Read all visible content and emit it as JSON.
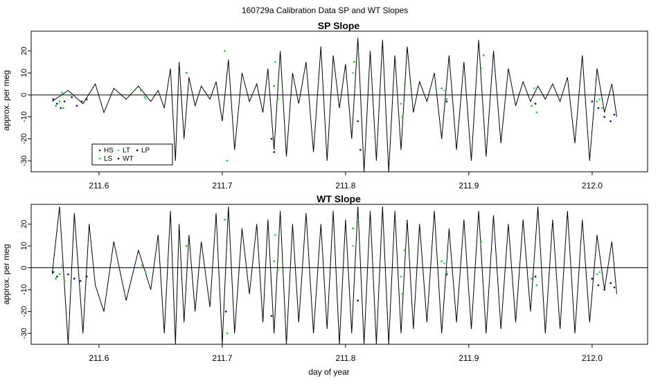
{
  "figure": {
    "title": "160729a   Calibration Data SP and WT Slopes",
    "xlabel": "day of year"
  },
  "colors": {
    "HS": "#1a1a8c",
    "LS": "#22cc22",
    "LT": "#33cccc",
    "WT": "#000000",
    "LP": "#000000",
    "axis": "#000000",
    "zero_line": "#000000"
  },
  "legend": {
    "placement": "bottom-left of top panel",
    "entries": [
      "HS",
      "LT",
      "LP",
      "LS",
      "WT"
    ]
  },
  "chart_data": [
    {
      "type": "line",
      "title": "SP Slope",
      "xlabel": "",
      "ylabel": "approx. per meg",
      "xlim": [
        211.545,
        212.045
      ],
      "ylim": [
        -35,
        29
      ],
      "xticks": [
        211.6,
        211.7,
        211.8,
        211.9,
        212.0
      ],
      "xtick_labels": [
        "211.6",
        "211.7",
        "211.8",
        "211.9",
        "212.0"
      ],
      "yticks": [
        -30,
        -20,
        -10,
        0,
        10,
        20
      ],
      "ytick_labels": [
        "-30",
        "-20",
        "-10",
        "0",
        "10",
        "20"
      ],
      "hline": 0,
      "series": [
        {
          "name": "WT",
          "style": "line",
          "x": [
            211.562,
            211.575,
            211.587,
            211.597,
            211.604,
            211.612,
            211.622,
            211.632,
            211.642,
            211.648,
            211.653,
            211.658,
            211.662,
            211.665,
            211.669,
            211.673,
            211.678,
            211.683,
            211.69,
            211.695,
            211.7,
            211.705,
            211.71,
            211.716,
            211.722,
            211.728,
            211.733,
            211.737,
            211.742,
            211.747,
            211.752,
            211.757,
            211.762,
            211.768,
            211.774,
            211.78,
            211.785,
            211.79,
            211.795,
            211.8,
            211.805,
            211.81,
            211.815,
            211.82,
            211.825,
            211.83,
            211.835,
            211.84,
            211.845,
            211.85,
            211.855,
            211.86,
            211.866,
            211.872,
            211.878,
            211.884,
            211.89,
            211.896,
            211.902,
            211.908,
            211.914,
            211.92,
            211.926,
            211.932,
            211.938,
            211.944,
            211.95,
            211.956,
            211.962,
            211.968,
            211.974,
            211.98,
            211.986,
            211.992,
            211.998,
            212.004,
            212.01,
            212.016,
            212.02
          ],
          "y": [
            -3,
            2,
            -4,
            5,
            -8,
            3,
            -2,
            4,
            -3,
            2,
            -6,
            12,
            -30,
            15,
            -20,
            8,
            -5,
            4,
            -2,
            6,
            -12,
            16,
            -25,
            10,
            -3,
            5,
            -8,
            12,
            -25,
            20,
            -28,
            10,
            -4,
            15,
            -26,
            22,
            -30,
            18,
            -6,
            14,
            -20,
            26,
            -35,
            20,
            -30,
            25,
            -35,
            18,
            -25,
            22,
            -8,
            6,
            -3,
            10,
            -20,
            18,
            -25,
            15,
            -30,
            25,
            -28,
            20,
            -22,
            12,
            -5,
            6,
            -3,
            4,
            -2,
            5,
            -3,
            8,
            -22,
            18,
            -30,
            12,
            -8,
            5,
            -10
          ]
        },
        {
          "name": "HS",
          "style": "points",
          "x": [
            211.563,
            211.566,
            211.569,
            211.572,
            211.578,
            211.582,
            211.586,
            211.59,
            211.74,
            211.742,
            211.81,
            211.812,
            211.882,
            211.954,
            212.0,
            212.005,
            212.01,
            212.015,
            212.018
          ],
          "y": [
            -2,
            -4,
            -6,
            -3,
            -1,
            -5,
            -3,
            -2,
            -20,
            -26,
            -12,
            -25,
            -3,
            -4,
            -3,
            -6,
            -10,
            -12,
            -9
          ]
        },
        {
          "name": "LS",
          "style": "points",
          "x": [
            211.565,
            211.568,
            211.571,
            211.575,
            211.634,
            211.637,
            211.671,
            211.702,
            211.704,
            211.742,
            211.745,
            211.807,
            211.81,
            211.846,
            211.848,
            211.878,
            211.882,
            211.91,
            211.912,
            211.951,
            211.955,
            212.004,
            212.008
          ],
          "y": [
            -5,
            -3,
            -6,
            0,
            2,
            -1,
            10,
            20,
            -30,
            4,
            -2,
            15,
            20,
            -10,
            5,
            3,
            -2,
            12,
            18,
            -5,
            -8,
            -3,
            -6
          ]
        },
        {
          "name": "LT",
          "style": "points",
          "x": [
            211.57,
            211.638,
            211.743,
            211.806,
            211.845,
            211.88,
            211.953,
            212.006
          ],
          "y": [
            1,
            -2,
            15,
            10,
            -4,
            2,
            3,
            -2
          ]
        },
        {
          "name": "LP",
          "style": "points",
          "x": [],
          "y": []
        }
      ]
    },
    {
      "type": "line",
      "title": "WT Slope",
      "xlabel": "day of year",
      "ylabel": "approx. per meg",
      "xlim": [
        211.545,
        212.045
      ],
      "ylim": [
        -35,
        29
      ],
      "xticks": [
        211.6,
        211.7,
        211.8,
        211.9,
        212.0
      ],
      "xtick_labels": [
        "211.6",
        "211.7",
        "211.8",
        "211.9",
        "212.0"
      ],
      "yticks": [
        -30,
        -20,
        -10,
        0,
        10,
        20
      ],
      "ytick_labels": [
        "-30",
        "-20",
        "-10",
        "0",
        "10",
        "20"
      ],
      "hline": 0,
      "series": [
        {
          "name": "WT",
          "style": "line",
          "x": [
            211.562,
            211.568,
            211.575,
            211.58,
            211.587,
            211.592,
            211.597,
            211.604,
            211.612,
            211.622,
            211.632,
            211.642,
            211.648,
            211.653,
            211.658,
            211.662,
            211.665,
            211.669,
            211.673,
            211.678,
            211.683,
            211.69,
            211.695,
            211.7,
            211.705,
            211.71,
            211.716,
            211.722,
            211.728,
            211.733,
            211.737,
            211.742,
            211.747,
            211.752,
            211.757,
            211.762,
            211.768,
            211.774,
            211.78,
            211.785,
            211.79,
            211.795,
            211.8,
            211.805,
            211.81,
            211.815,
            211.82,
            211.825,
            211.83,
            211.835,
            211.84,
            211.845,
            211.85,
            211.855,
            211.86,
            211.866,
            211.872,
            211.878,
            211.884,
            211.89,
            211.896,
            211.902,
            211.908,
            211.914,
            211.92,
            211.926,
            211.932,
            211.938,
            211.944,
            211.95,
            211.956,
            211.962,
            211.968,
            211.974,
            211.98,
            211.986,
            211.992,
            211.998,
            212.004,
            212.01,
            212.016,
            212.02
          ],
          "y": [
            -3,
            28,
            -35,
            25,
            -30,
            20,
            -8,
            -20,
            12,
            -15,
            8,
            -10,
            15,
            -30,
            26,
            -35,
            20,
            -25,
            15,
            -20,
            12,
            -18,
            25,
            -35,
            28,
            -30,
            18,
            -12,
            20,
            -25,
            22,
            -30,
            26,
            -35,
            20,
            -25,
            25,
            -30,
            20,
            -28,
            26,
            -35,
            22,
            -30,
            28,
            -35,
            26,
            -35,
            28,
            -35,
            26,
            -30,
            22,
            -28,
            20,
            -25,
            26,
            -30,
            18,
            -25,
            22,
            -28,
            26,
            -30,
            24,
            -28,
            20,
            -25,
            22,
            -20,
            28,
            -30,
            22,
            -28,
            26,
            -30,
            22,
            -25,
            15,
            -10,
            12,
            -12
          ]
        },
        {
          "name": "HS",
          "style": "points",
          "x": [
            211.563,
            211.566,
            211.575,
            211.58,
            211.585,
            211.59,
            211.703,
            211.74,
            211.81,
            211.882,
            211.954,
            212.0,
            212.005,
            212.01,
            212.015,
            212.018
          ],
          "y": [
            -2,
            -4,
            -3,
            -5,
            -6,
            -4,
            -20,
            -22,
            -15,
            -3,
            -4,
            -5,
            -8,
            -10,
            -7,
            -9
          ]
        },
        {
          "name": "LS",
          "style": "points",
          "x": [
            211.565,
            211.568,
            211.572,
            211.635,
            211.671,
            211.702,
            211.704,
            211.742,
            211.745,
            211.806,
            211.81,
            211.846,
            211.848,
            211.878,
            211.882,
            211.91,
            211.951,
            211.955,
            212.004
          ],
          "y": [
            -5,
            -3,
            -6,
            1,
            10,
            22,
            -30,
            3,
            -1,
            18,
            22,
            -12,
            8,
            3,
            -2,
            12,
            -5,
            -8,
            -3
          ]
        },
        {
          "name": "LT",
          "style": "points",
          "x": [
            211.57,
            211.638,
            211.743,
            211.806,
            211.845,
            211.88,
            211.953,
            212.006
          ],
          "y": [
            1,
            -2,
            15,
            10,
            -4,
            2,
            3,
            -2
          ]
        },
        {
          "name": "LP",
          "style": "points",
          "x": [],
          "y": []
        }
      ]
    }
  ]
}
